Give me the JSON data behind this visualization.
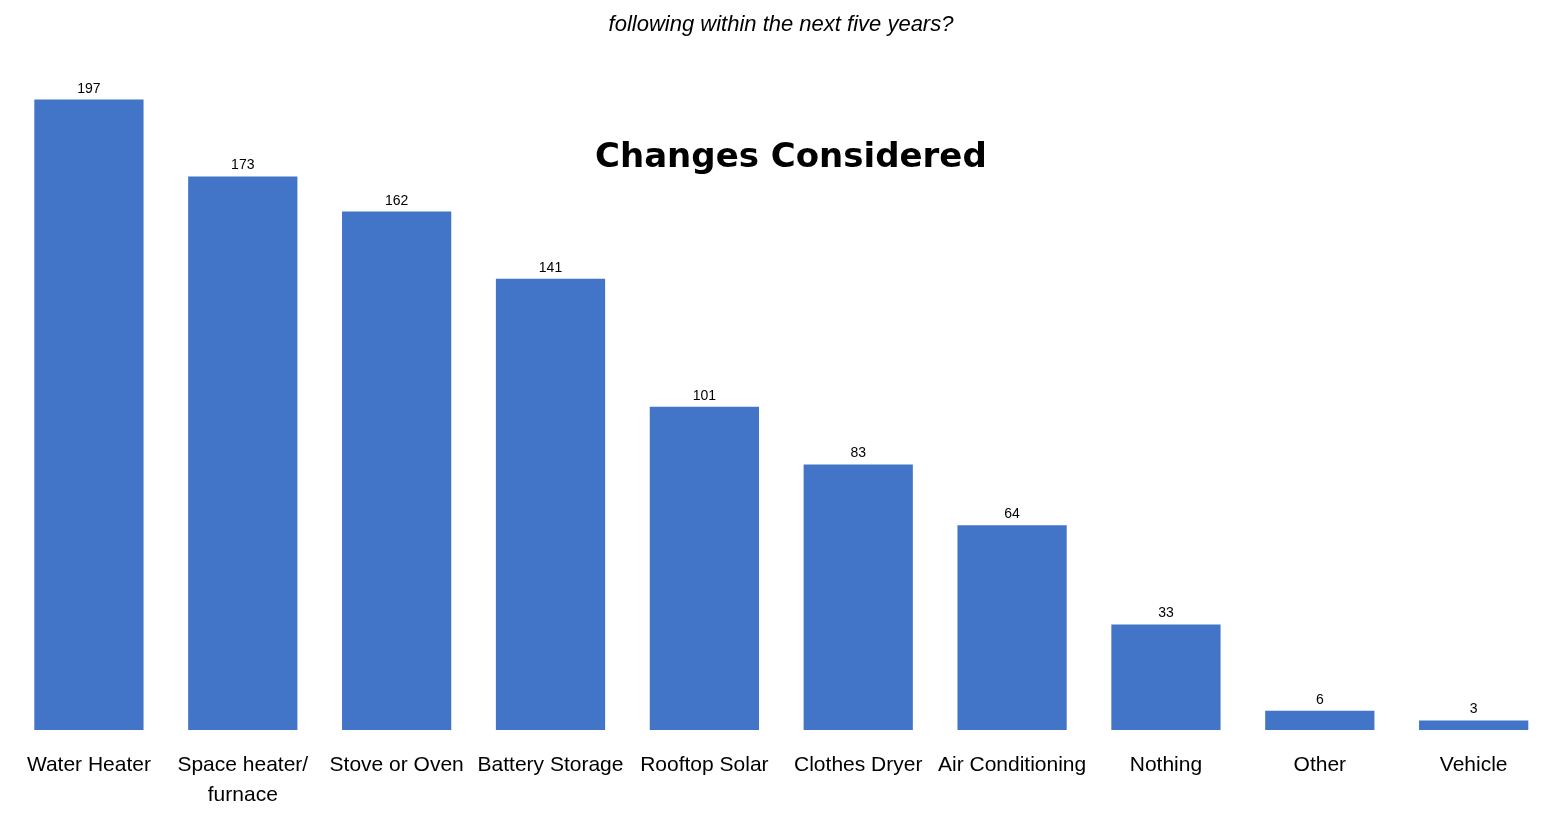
{
  "chart_data": {
    "type": "bar",
    "title": "Changes Considered",
    "annotations": [
      "following within the next five years?"
    ],
    "categories": [
      "Water Heater",
      "Space heater/furnace",
      "Stove or Oven",
      "Battery Storage",
      "Rooftop Solar",
      "Clothes Dryer",
      "Air Conditioning",
      "Nothing",
      "Other",
      "Vehicle"
    ],
    "values": [
      197,
      173,
      162,
      141,
      101,
      83,
      64,
      33,
      6,
      3
    ],
    "color": "#4275c8",
    "data_labels": true
  }
}
